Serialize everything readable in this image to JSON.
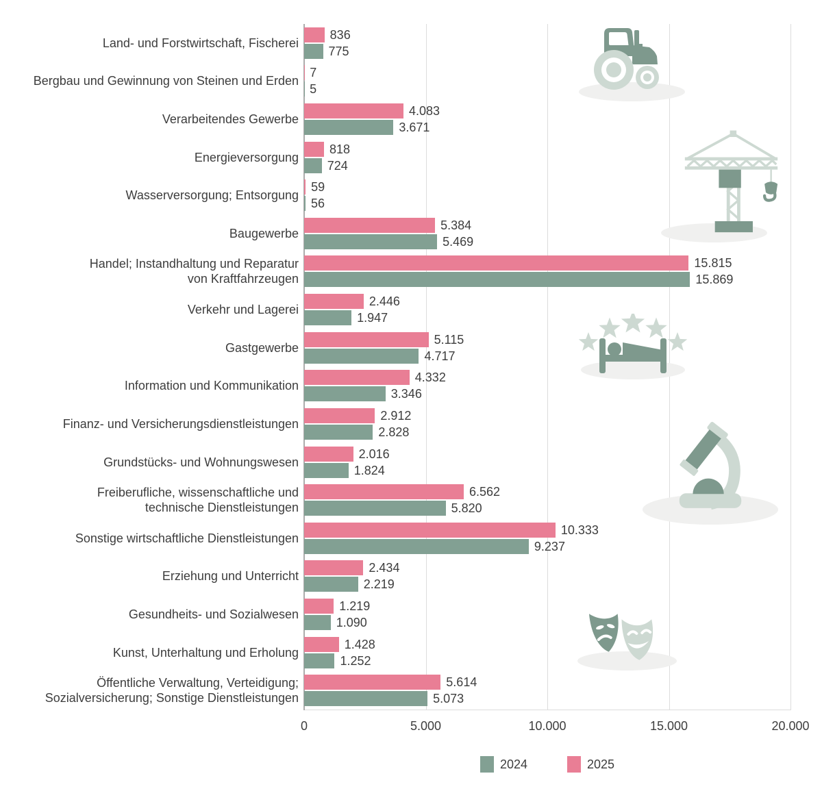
{
  "chart_data": {
    "type": "bar",
    "orientation": "horizontal",
    "title": "",
    "xlabel": "",
    "ylabel": "",
    "xlim": [
      0,
      20000
    ],
    "grid": "vertical",
    "legend_position": "bottom-center",
    "x_ticks": [
      {
        "value": 0,
        "label": "0"
      },
      {
        "value": 5000,
        "label": "5.000"
      },
      {
        "value": 10000,
        "label": "10.000"
      },
      {
        "value": 15000,
        "label": "15.000"
      },
      {
        "value": 20000,
        "label": "20.000"
      }
    ],
    "series_names": [
      "2024",
      "2025"
    ],
    "bar_order_top_to_bottom": [
      "2025",
      "2024"
    ],
    "number_format": "de-DE thousands dot",
    "categories": [
      {
        "lines": [
          "Land- und Forstwirtschaft, Fischerei"
        ],
        "values": {
          "2025": 836,
          "2024": 775
        }
      },
      {
        "lines": [
          "Bergbau und Gewinnung von Steinen und Erden"
        ],
        "values": {
          "2025": 7,
          "2024": 5
        }
      },
      {
        "lines": [
          "Verarbeitendes Gewerbe"
        ],
        "values": {
          "2025": 4083,
          "2024": 3671
        }
      },
      {
        "lines": [
          "Energieversorgung"
        ],
        "values": {
          "2025": 818,
          "2024": 724
        }
      },
      {
        "lines": [
          "Wasserversorgung; Entsorgung"
        ],
        "values": {
          "2025": 59,
          "2024": 56
        }
      },
      {
        "lines": [
          "Baugewerbe"
        ],
        "values": {
          "2025": 5384,
          "2024": 5469
        }
      },
      {
        "lines": [
          "Handel; Instandhaltung und Reparatur",
          "von Kraftfahrzeugen"
        ],
        "values": {
          "2025": 15815,
          "2024": 15869
        }
      },
      {
        "lines": [
          "Verkehr und Lagerei"
        ],
        "values": {
          "2025": 2446,
          "2024": 1947
        }
      },
      {
        "lines": [
          "Gastgewerbe"
        ],
        "values": {
          "2025": 5115,
          "2024": 4717
        }
      },
      {
        "lines": [
          "Information und Kommunikation"
        ],
        "values": {
          "2025": 4332,
          "2024": 3346
        }
      },
      {
        "lines": [
          "Finanz- und Versicherungsdienstleistungen"
        ],
        "values": {
          "2025": 2912,
          "2024": 2828
        }
      },
      {
        "lines": [
          "Grundstücks- und Wohnungswesen"
        ],
        "values": {
          "2025": 2016,
          "2024": 1824
        }
      },
      {
        "lines": [
          "Freiberufliche, wissenschaftliche und",
          "technische Dienstleistungen"
        ],
        "values": {
          "2025": 6562,
          "2024": 5820
        }
      },
      {
        "lines": [
          "Sonstige wirtschaftliche Dienstleistungen"
        ],
        "values": {
          "2025": 10333,
          "2024": 9237
        }
      },
      {
        "lines": [
          "Erziehung und Unterricht"
        ],
        "values": {
          "2025": 2434,
          "2024": 2219
        }
      },
      {
        "lines": [
          "Gesundheits- und Sozialwesen"
        ],
        "values": {
          "2025": 1219,
          "2024": 1090
        }
      },
      {
        "lines": [
          "Kunst, Unterhaltung und Erholung"
        ],
        "values": {
          "2025": 1428,
          "2024": 1252
        }
      },
      {
        "lines": [
          "Öffentliche Verwaltung, Verteidigung;",
          "Sozialversicherung; Sonstige Dienstleistungen"
        ],
        "values": {
          "2025": 5614,
          "2024": 5073
        }
      }
    ]
  },
  "legend": [
    {
      "series": "2024",
      "label": "2024",
      "color": "#82A093"
    },
    {
      "series": "2025",
      "label": "2025",
      "color": "#E97E95"
    }
  ],
  "colors": {
    "series_2024": "#82A093",
    "series_2025": "#E97E95",
    "icon_dark": "#7E998D",
    "icon_light": "#CDD9D2",
    "icon_shadow": "#F0F0EF",
    "gridline": "#DCDCDC",
    "axis_line": "#ABABAB",
    "text": "#3D3D3D"
  },
  "decorative_icons": [
    "tractor",
    "construction-crane",
    "hotel-bed-with-stars",
    "microscope",
    "theater-masks"
  ]
}
